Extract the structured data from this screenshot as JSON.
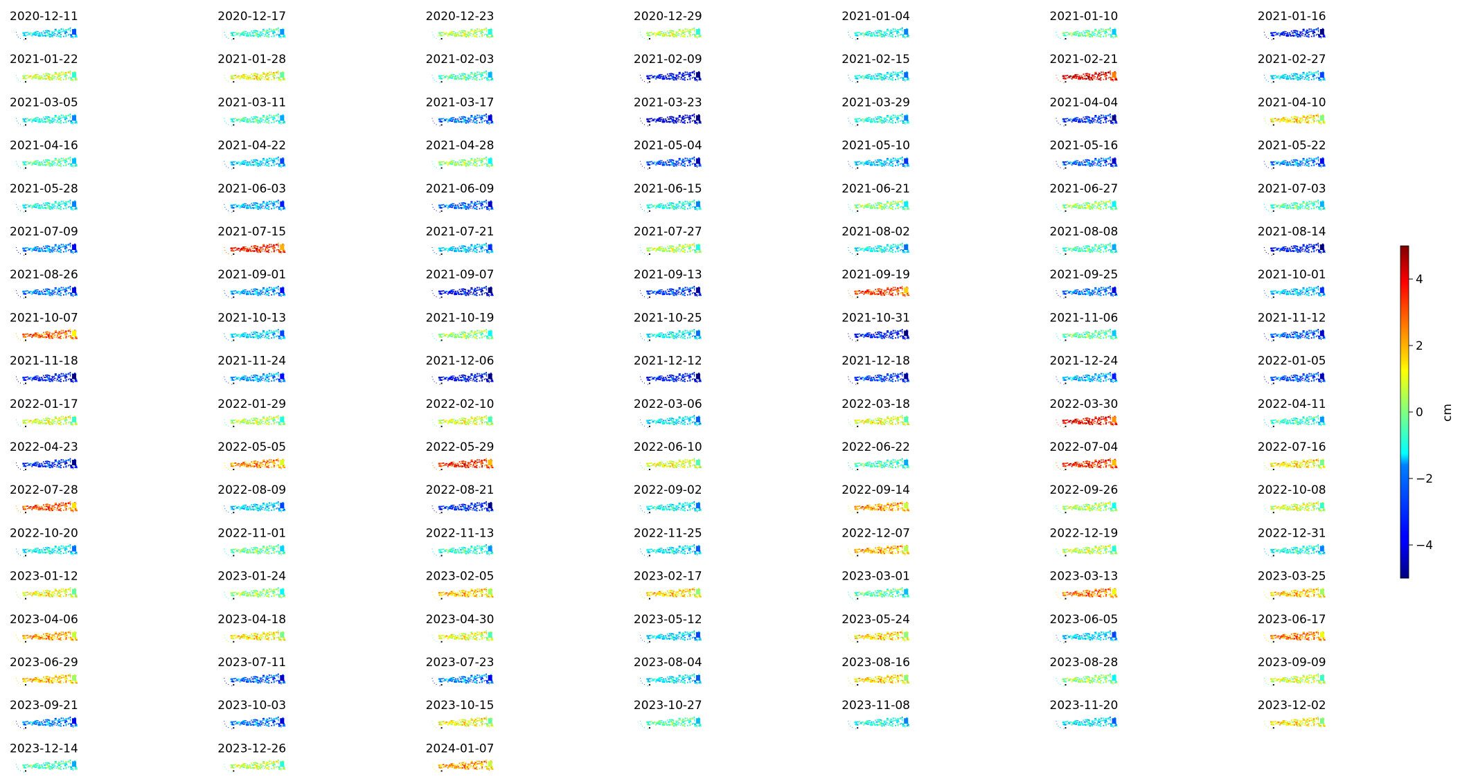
{
  "chart_data": {
    "type": "heatmap",
    "title": "",
    "grid": false,
    "layout": {
      "columns": 7
    },
    "colormap": "jet",
    "colorbar": {
      "label": "cm",
      "vmin": -5,
      "vmax": 5,
      "ticks": [
        4,
        2,
        0,
        -2,
        -4
      ],
      "tick_labels": [
        "4",
        "2",
        "0",
        "−2",
        "−4"
      ]
    },
    "panels": [
      {
        "date": "2020-12-11",
        "mean": -1.5
      },
      {
        "date": "2020-12-17",
        "mean": -0.8
      },
      {
        "date": "2020-12-23",
        "mean": 0.5
      },
      {
        "date": "2020-12-29",
        "mean": 0.6
      },
      {
        "date": "2021-01-04",
        "mean": -1.0
      },
      {
        "date": "2021-01-10",
        "mean": -0.3
      },
      {
        "date": "2021-01-16",
        "mean": -3.6
      },
      {
        "date": "2021-01-22",
        "mean": 0.7
      },
      {
        "date": "2021-01-28",
        "mean": 1.2
      },
      {
        "date": "2021-02-03",
        "mean": -0.5
      },
      {
        "date": "2021-02-09",
        "mean": -3.8
      },
      {
        "date": "2021-02-15",
        "mean": -1.2
      },
      {
        "date": "2021-02-21",
        "mean": 4.0
      },
      {
        "date": "2021-02-27",
        "mean": -1.6
      },
      {
        "date": "2021-03-05",
        "mean": -1.0
      },
      {
        "date": "2021-03-11",
        "mean": -0.6
      },
      {
        "date": "2021-03-17",
        "mean": -2.6
      },
      {
        "date": "2021-03-23",
        "mean": -4.2
      },
      {
        "date": "2021-03-29",
        "mean": -1.0
      },
      {
        "date": "2021-04-04",
        "mean": -3.4
      },
      {
        "date": "2021-04-10",
        "mean": 1.5
      },
      {
        "date": "2021-04-16",
        "mean": -0.4
      },
      {
        "date": "2021-04-22",
        "mean": -1.6
      },
      {
        "date": "2021-04-28",
        "mean": 0.2
      },
      {
        "date": "2021-05-04",
        "mean": -3.0
      },
      {
        "date": "2021-05-10",
        "mean": -1.8
      },
      {
        "date": "2021-05-16",
        "mean": -2.8
      },
      {
        "date": "2021-05-22",
        "mean": -2.4
      },
      {
        "date": "2021-05-28",
        "mean": -1.0
      },
      {
        "date": "2021-06-03",
        "mean": -2.0
      },
      {
        "date": "2021-06-09",
        "mean": -2.8
      },
      {
        "date": "2021-06-15",
        "mean": -1.0
      },
      {
        "date": "2021-06-21",
        "mean": 0.1
      },
      {
        "date": "2021-06-27",
        "mean": 0.2
      },
      {
        "date": "2021-07-03",
        "mean": -0.5
      },
      {
        "date": "2021-07-09",
        "mean": -2.4
      },
      {
        "date": "2021-07-15",
        "mean": 3.5
      },
      {
        "date": "2021-07-21",
        "mean": -1.8
      },
      {
        "date": "2021-07-27",
        "mean": 0.5
      },
      {
        "date": "2021-08-02",
        "mean": -1.2
      },
      {
        "date": "2021-08-08",
        "mean": -0.6
      },
      {
        "date": "2021-08-14",
        "mean": -3.6
      },
      {
        "date": "2021-08-26",
        "mean": -2.6
      },
      {
        "date": "2021-09-01",
        "mean": -2.2
      },
      {
        "date": "2021-09-07",
        "mean": -3.8
      },
      {
        "date": "2021-09-13",
        "mean": -3.2
      },
      {
        "date": "2021-09-19",
        "mean": 3.2
      },
      {
        "date": "2021-09-25",
        "mean": -2.6
      },
      {
        "date": "2021-10-01",
        "mean": -1.8
      },
      {
        "date": "2021-10-07",
        "mean": 2.8
      },
      {
        "date": "2021-10-13",
        "mean": -1.6
      },
      {
        "date": "2021-10-19",
        "mean": 0.2
      },
      {
        "date": "2021-10-25",
        "mean": -1.2
      },
      {
        "date": "2021-10-31",
        "mean": -3.6
      },
      {
        "date": "2021-11-06",
        "mean": -0.3
      },
      {
        "date": "2021-11-12",
        "mean": -2.8
      },
      {
        "date": "2021-11-18",
        "mean": -3.6
      },
      {
        "date": "2021-11-24",
        "mean": -2.2
      },
      {
        "date": "2021-12-06",
        "mean": -3.8
      },
      {
        "date": "2021-12-12",
        "mean": -3.6
      },
      {
        "date": "2021-12-18",
        "mean": -3.2
      },
      {
        "date": "2021-12-24",
        "mean": -2.0
      },
      {
        "date": "2022-01-05",
        "mean": -3.0
      },
      {
        "date": "2022-01-17",
        "mean": 0.8
      },
      {
        "date": "2022-01-29",
        "mean": 0.5
      },
      {
        "date": "2022-02-10",
        "mean": 0.9
      },
      {
        "date": "2022-03-06",
        "mean": -1.4
      },
      {
        "date": "2022-03-18",
        "mean": 1.0
      },
      {
        "date": "2022-03-30",
        "mean": 3.8
      },
      {
        "date": "2022-04-11",
        "mean": -0.8
      },
      {
        "date": "2022-04-23",
        "mean": -3.4
      },
      {
        "date": "2022-05-05",
        "mean": 2.4
      },
      {
        "date": "2022-05-29",
        "mean": 3.4
      },
      {
        "date": "2022-06-10",
        "mean": 1.0
      },
      {
        "date": "2022-06-22",
        "mean": -0.6
      },
      {
        "date": "2022-07-04",
        "mean": 3.4
      },
      {
        "date": "2022-07-16",
        "mean": 1.4
      },
      {
        "date": "2022-07-28",
        "mean": 3.0
      },
      {
        "date": "2022-08-09",
        "mean": -1.6
      },
      {
        "date": "2022-08-21",
        "mean": -3.4
      },
      {
        "date": "2022-09-02",
        "mean": -1.2
      },
      {
        "date": "2022-09-14",
        "mean": 2.2
      },
      {
        "date": "2022-09-26",
        "mean": 0.4
      },
      {
        "date": "2022-10-08",
        "mean": 0.8
      },
      {
        "date": "2022-10-20",
        "mean": -1.2
      },
      {
        "date": "2022-11-01",
        "mean": -0.2
      },
      {
        "date": "2022-11-13",
        "mean": -0.8
      },
      {
        "date": "2022-11-25",
        "mean": -1.4
      },
      {
        "date": "2022-12-07",
        "mean": 2.0
      },
      {
        "date": "2022-12-19",
        "mean": 0.6
      },
      {
        "date": "2022-12-31",
        "mean": -1.0
      },
      {
        "date": "2023-01-12",
        "mean": 1.2
      },
      {
        "date": "2023-01-24",
        "mean": 0.2
      },
      {
        "date": "2023-02-05",
        "mean": 1.8
      },
      {
        "date": "2023-02-17",
        "mean": 1.6
      },
      {
        "date": "2023-03-01",
        "mean": -0.4
      },
      {
        "date": "2023-03-13",
        "mean": 2.6
      },
      {
        "date": "2023-03-25",
        "mean": 1.8
      },
      {
        "date": "2023-04-06",
        "mean": 2.2
      },
      {
        "date": "2023-04-18",
        "mean": 1.4
      },
      {
        "date": "2023-04-30",
        "mean": 1.0
      },
      {
        "date": "2023-05-12",
        "mean": -1.6
      },
      {
        "date": "2023-05-24",
        "mean": 1.6
      },
      {
        "date": "2023-06-05",
        "mean": -1.6
      },
      {
        "date": "2023-06-17",
        "mean": 2.6
      },
      {
        "date": "2023-06-29",
        "mean": 1.8
      },
      {
        "date": "2023-07-11",
        "mean": -2.8
      },
      {
        "date": "2023-07-23",
        "mean": -2.4
      },
      {
        "date": "2023-08-04",
        "mean": -1.4
      },
      {
        "date": "2023-08-16",
        "mean": 1.6
      },
      {
        "date": "2023-08-28",
        "mean": 0.2
      },
      {
        "date": "2023-09-09",
        "mean": 0.8
      },
      {
        "date": "2023-09-21",
        "mean": -2.4
      },
      {
        "date": "2023-10-03",
        "mean": -2.6
      },
      {
        "date": "2023-10-15",
        "mean": 1.2
      },
      {
        "date": "2023-10-27",
        "mean": -0.4
      },
      {
        "date": "2023-11-08",
        "mean": -1.0
      },
      {
        "date": "2023-11-20",
        "mean": -1.4
      },
      {
        "date": "2023-12-02",
        "mean": 1.4
      },
      {
        "date": "2023-12-14",
        "mean": -0.6
      },
      {
        "date": "2023-12-26",
        "mean": 0.6
      },
      {
        "date": "2024-01-07",
        "mean": 2.2
      }
    ]
  }
}
